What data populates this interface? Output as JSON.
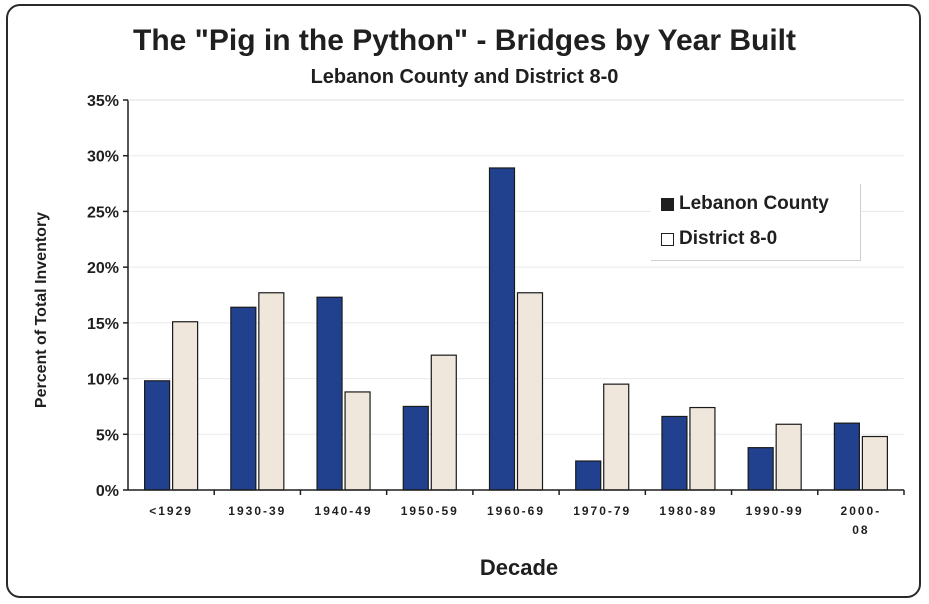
{
  "chart_data": {
    "type": "bar",
    "title": "The \"Pig in the Python\" - Bridges by Year Built",
    "subtitle": "Lebanon County and District 8-0",
    "xlabel": "Decade",
    "ylabel": "Percent of Total Inventory",
    "categories": [
      "<1929",
      "1930-39",
      "1940-49",
      "1950-59",
      "1960-69",
      "1970-79",
      "1980-89",
      "1990-99",
      "2000-08"
    ],
    "category_labels": [
      [
        "<1929"
      ],
      [
        "1930-39"
      ],
      [
        "1940-49"
      ],
      [
        "1950-59"
      ],
      [
        "1960-69"
      ],
      [
        "1970-79"
      ],
      [
        "1980-89"
      ],
      [
        "1990-99"
      ],
      [
        "2000-",
        "08"
      ]
    ],
    "series": [
      {
        "name": "Lebanon County",
        "values": [
          9.8,
          16.4,
          17.3,
          7.5,
          28.9,
          2.6,
          6.6,
          3.8,
          6.0
        ],
        "color": "#21418f"
      },
      {
        "name": "District 8-0",
        "values": [
          15.1,
          17.7,
          8.8,
          12.1,
          17.7,
          9.5,
          7.4,
          5.9,
          4.8
        ],
        "color": "#efe7dc"
      }
    ],
    "ylim": [
      0,
      35
    ],
    "yticks": [
      0,
      5,
      10,
      15,
      20,
      25,
      30,
      35
    ],
    "ytick_labels": [
      "0%",
      "5%",
      "10%",
      "15%",
      "20%",
      "25%",
      "30%",
      "35%"
    ],
    "legend_position": "upper-right",
    "grid": true
  }
}
